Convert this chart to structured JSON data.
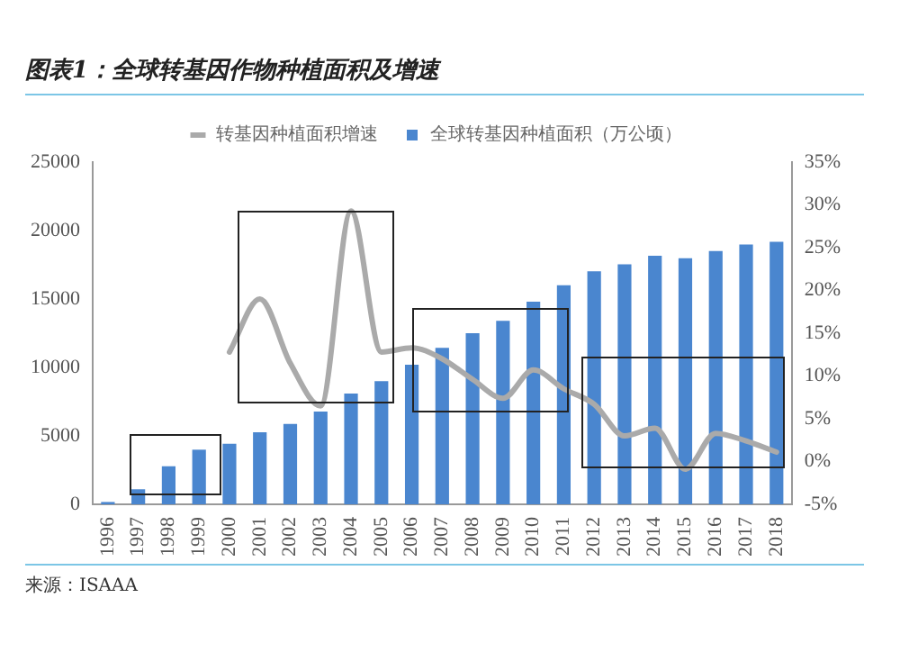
{
  "chart_data": {
    "type": "bar",
    "title": "图表1：全球转基因作物种植面积及增速",
    "categories": [
      "1996",
      "1997",
      "1998",
      "1999",
      "2000",
      "2001",
      "2002",
      "2003",
      "2004",
      "2005",
      "2006",
      "2007",
      "2008",
      "2009",
      "2010",
      "2011",
      "2012",
      "2013",
      "2014",
      "2015",
      "2016",
      "2017",
      "2018"
    ],
    "series": [
      {
        "name": "全球转基因种植面积（万公顷）",
        "color": "#4a86cf",
        "values": [
          170,
          1100,
          2780,
          3990,
          4420,
          5260,
          5870,
          6770,
          8100,
          9000,
          10200,
          11430,
          12500,
          13400,
          14800,
          16000,
          17030,
          17530,
          18150,
          17970,
          18510,
          18980,
          19170
        ]
      },
      {
        "name": "转基因种植面积增速",
        "type": "line",
        "axis": "y2",
        "color": "#aaaaaa",
        "values": [
          null,
          null,
          null,
          null,
          12.8,
          19,
          11.5,
          6.5,
          29.3,
          12.8,
          13.3,
          12,
          9.6,
          7.4,
          10.7,
          8.5,
          6.7,
          3,
          3.9,
          -0.9,
          3.3,
          2.4,
          1.1
        ]
      }
    ],
    "ylim": [
      0,
      25000
    ],
    "yticks": [
      0,
      5000,
      10000,
      15000,
      20000,
      25000
    ],
    "y2lim": [
      -5,
      35
    ],
    "y2ticks": [
      {
        "value": -5,
        "label": "-5%"
      },
      {
        "value": 0,
        "label": "0%"
      },
      {
        "value": 5,
        "label": "5%"
      },
      {
        "value": 10,
        "label": "10%"
      },
      {
        "value": 15,
        "label": "15%"
      },
      {
        "value": 20,
        "label": "20%"
      },
      {
        "value": 25,
        "label": "25%"
      },
      {
        "value": 30,
        "label": "30%"
      },
      {
        "value": 35,
        "label": "35%"
      }
    ],
    "legend": "top",
    "grid": false,
    "marker": "none",
    "annotations": [
      "来源：ISAAA"
    ]
  }
}
